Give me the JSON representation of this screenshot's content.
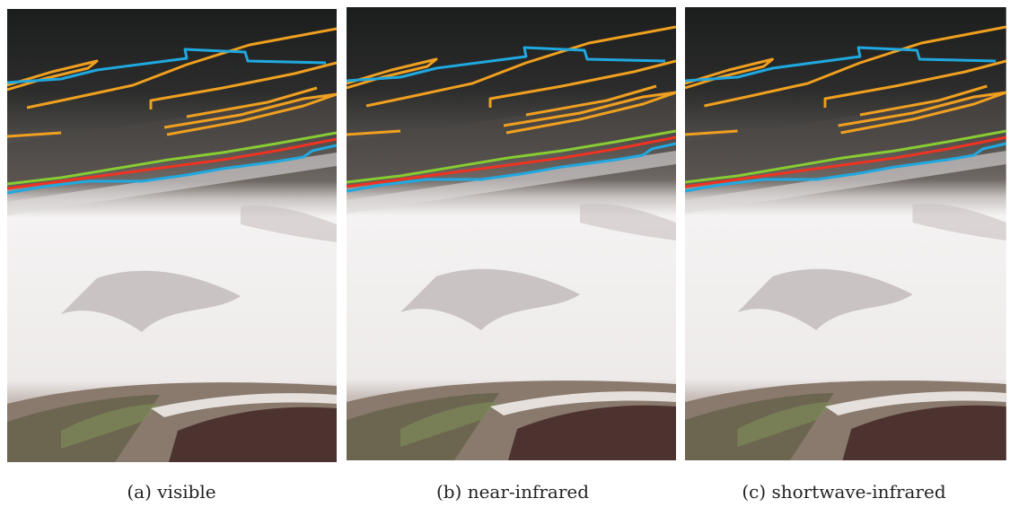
{
  "panels": [
    {
      "caption": "(a) visible"
    },
    {
      "caption": "(b) near-infrared"
    },
    {
      "caption": "(c) shortwave-infrared"
    }
  ]
}
